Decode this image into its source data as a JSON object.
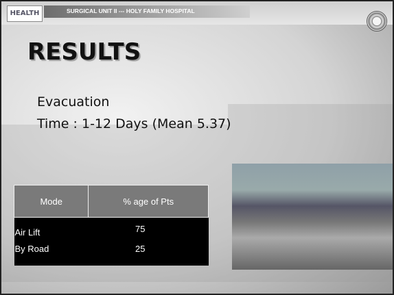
{
  "header": {
    "logo": "HEALTH",
    "title": "SURGICAL UNIT II --- HOLY FAMILY HOSPITAL"
  },
  "title": "RESULTS",
  "lines": [
    "Evacuation",
    "Time : 1-12 Days (Mean 5.37)"
  ],
  "table": {
    "header": [
      "Mode",
      "% age of Pts"
    ],
    "rows": [
      [
        "Air Lift",
        75
      ],
      [
        "By Road",
        25
      ]
    ]
  }
}
